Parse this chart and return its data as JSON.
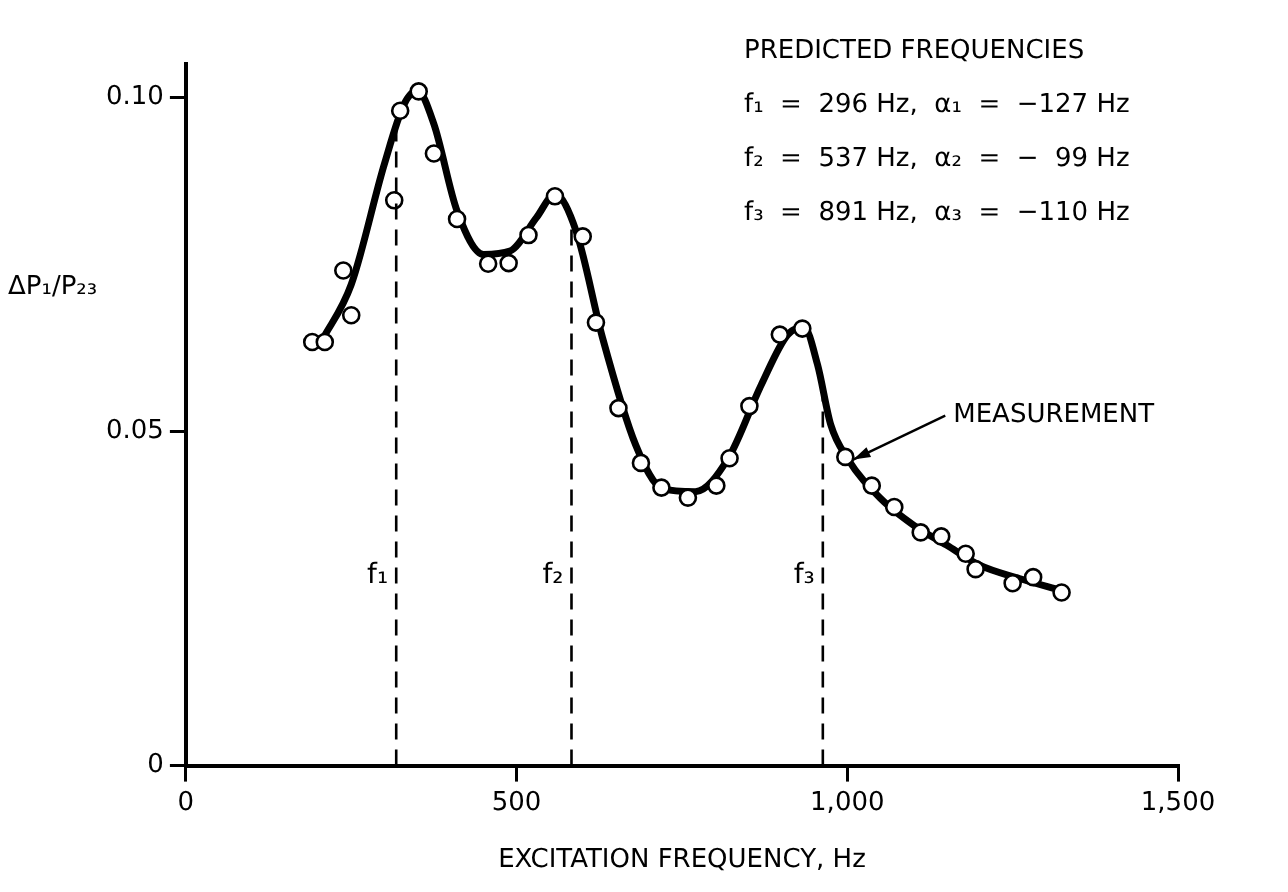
{
  "chart_data": {
    "type": "scatter",
    "xlabel": "EXCITATION FREQUENCY, Hz",
    "ylabel": "ΔP₁/P₂₃",
    "xlim": [
      0,
      1500
    ],
    "xticks": [
      0,
      500,
      {
        "value": 1000,
        "label": "1,000"
      },
      {
        "value": 1500,
        "label": "1,500"
      }
    ],
    "ylim": [
      0,
      0.105
    ],
    "yticks": [
      0,
      0.05,
      {
        "value": 0.1,
        "label": "0.10"
      }
    ],
    "grid": false,
    "legend": false,
    "marker": "circle",
    "series": [
      {
        "type": "scatter",
        "color": "#000000",
        "x": [
          191,
          210,
          238,
          250,
          315,
          324,
          352,
          375,
          410,
          457,
          488,
          518,
          558,
          600,
          620,
          654,
          688,
          719,
          759,
          802,
          822,
          852,
          898,
          932,
          997,
          1037,
          1071,
          1111,
          1142,
          1179,
          1194,
          1250,
          1281,
          1324
        ],
        "values": [
          0.0634,
          0.0634,
          0.0741,
          0.0674,
          0.0846,
          0.098,
          0.1009,
          0.0916,
          0.0818,
          0.0751,
          0.0752,
          0.0794,
          0.0852,
          0.0792,
          0.0663,
          0.0535,
          0.0453,
          0.0416,
          0.0401,
          0.0419,
          0.046,
          0.0538,
          0.0645,
          0.0654,
          0.0462,
          0.0419,
          0.0387,
          0.0349,
          0.0343,
          0.0317,
          0.0294,
          0.0273,
          0.0282,
          0.0259
        ]
      },
      {
        "type": "line",
        "color": "#000000",
        "marker": "none",
        "line_style": "solid",
        "x": [
          205,
          250,
          300,
          330,
          350,
          375,
          410,
          450,
          490,
          530,
          558,
          590,
          630,
          680,
          720,
          770,
          820,
          870,
          910,
          935,
          955,
          975,
          1000,
          1050,
          1100,
          1150,
          1200,
          1260,
          1324
        ],
        "values": [
          0.0635,
          0.072,
          0.09,
          0.099,
          0.101,
          0.096,
          0.083,
          0.0765,
          0.077,
          0.082,
          0.0855,
          0.08,
          0.064,
          0.048,
          0.0415,
          0.041,
          0.046,
          0.057,
          0.0645,
          0.0655,
          0.06,
          0.051,
          0.046,
          0.04,
          0.036,
          0.033,
          0.03,
          0.028,
          0.0262
        ]
      }
    ],
    "ref_lines": [
      {
        "axis": "x",
        "value": 318,
        "label": "f₁",
        "line_style": "dashed",
        "color": "#000000"
      },
      {
        "axis": "x",
        "value": 583,
        "label": "f₂",
        "line_style": "dashed",
        "color": "#000000"
      },
      {
        "axis": "x",
        "value": 963,
        "label": "f₃",
        "line_style": "dashed",
        "color": "#000000"
      }
    ],
    "annotations": [
      "PREDICTED FREQUENCIES",
      "f₁  =  296 Hz,  α₁  =  −127 Hz",
      "f₂  =  537 Hz,  α₂  =  −  99 Hz",
      "f₃  =  891 Hz,  α₃  =  −110 Hz",
      {
        "text": "MEASUREMENT",
        "x": 1009,
        "y": 0.0458
      }
    ]
  }
}
